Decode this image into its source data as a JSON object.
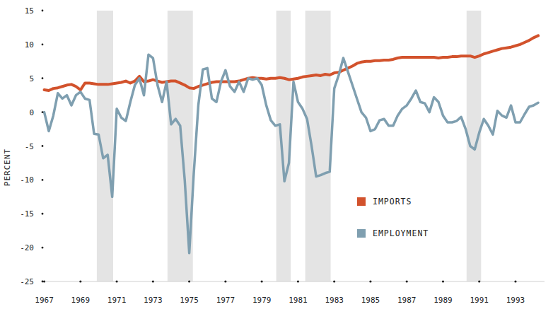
{
  "chart_data": {
    "type": "line",
    "y_label": "PERCENT",
    "x": [
      1967,
      1967.25,
      1967.5,
      1967.75,
      1968,
      1968.25,
      1968.5,
      1968.75,
      1969,
      1969.25,
      1969.5,
      1969.75,
      1970,
      1970.25,
      1970.5,
      1970.75,
      1971,
      1971.25,
      1971.5,
      1971.75,
      1972,
      1972.25,
      1972.5,
      1972.75,
      1973,
      1973.25,
      1973.5,
      1973.75,
      1974,
      1974.25,
      1974.5,
      1974.75,
      1975,
      1975.25,
      1975.5,
      1975.75,
      1976,
      1976.25,
      1976.5,
      1976.75,
      1977,
      1977.25,
      1977.5,
      1977.75,
      1978,
      1978.25,
      1978.5,
      1978.75,
      1979,
      1979.25,
      1979.5,
      1979.75,
      1980,
      1980.25,
      1980.5,
      1980.75,
      1981,
      1981.25,
      1981.5,
      1981.75,
      1982,
      1982.25,
      1982.5,
      1982.75,
      1983,
      1983.25,
      1983.5,
      1983.75,
      1984,
      1984.25,
      1984.5,
      1984.75,
      1985,
      1985.25,
      1985.5,
      1985.75,
      1986,
      1986.25,
      1986.5,
      1986.75,
      1987,
      1987.25,
      1987.5,
      1987.75,
      1988,
      1988.25,
      1988.5,
      1988.75,
      1989,
      1989.25,
      1989.5,
      1989.75,
      1990,
      1990.25,
      1990.5,
      1990.75,
      1991,
      1991.25,
      1991.5,
      1991.75,
      1992,
      1992.25,
      1992.5,
      1992.75,
      1993,
      1993.25,
      1993.5,
      1993.75,
      1994,
      1994.25
    ],
    "series": [
      {
        "name": "IMPORTS",
        "color": "#d2522c",
        "values": [
          3.3,
          3.2,
          3.5,
          3.6,
          3.8,
          4.0,
          4.1,
          3.8,
          3.3,
          4.3,
          4.3,
          4.2,
          4.1,
          4.1,
          4.1,
          4.2,
          4.3,
          4.4,
          4.6,
          4.3,
          4.6,
          5.3,
          4.5,
          4.6,
          4.8,
          4.6,
          4.4,
          4.5,
          4.6,
          4.6,
          4.3,
          4.0,
          3.6,
          3.5,
          3.8,
          4.0,
          4.2,
          4.4,
          4.5,
          4.5,
          4.5,
          4.5,
          4.5,
          4.6,
          4.8,
          5.0,
          5.1,
          5.0,
          5.0,
          4.9,
          5.0,
          5.0,
          5.1,
          5.0,
          4.8,
          4.9,
          5.0,
          5.2,
          5.3,
          5.4,
          5.5,
          5.4,
          5.6,
          5.5,
          5.8,
          5.9,
          6.2,
          6.5,
          6.8,
          7.2,
          7.4,
          7.5,
          7.5,
          7.6,
          7.6,
          7.7,
          7.7,
          7.8,
          8.0,
          8.1,
          8.1,
          8.1,
          8.1,
          8.1,
          8.1,
          8.1,
          8.1,
          8.0,
          8.1,
          8.1,
          8.2,
          8.2,
          8.3,
          8.3,
          8.3,
          8.1,
          8.3,
          8.6,
          8.8,
          9.0,
          9.2,
          9.4,
          9.5,
          9.6,
          9.8,
          10.0,
          10.3,
          10.6,
          11.0,
          11.3
        ]
      },
      {
        "name": "EMPLOYMENT",
        "color": "#7f9fb0",
        "values": [
          0,
          -2.8,
          -0.5,
          2.8,
          2,
          2.5,
          1,
          2.5,
          3,
          2,
          1.8,
          -3.2,
          -3.3,
          -6.8,
          -6.3,
          -12.5,
          0.5,
          -0.8,
          -1.3,
          1.5,
          4,
          5,
          2.5,
          8.5,
          8,
          4,
          1.5,
          4.5,
          -1.8,
          -1,
          -2,
          -10,
          -20.8,
          -9,
          1,
          6.3,
          6.5,
          2,
          1.5,
          4.5,
          6.2,
          3.8,
          3,
          4.5,
          3,
          5,
          4.8,
          5,
          4,
          1,
          -1.2,
          -2,
          -1.8,
          -10.2,
          -7.5,
          4.5,
          1.5,
          0.5,
          -1,
          -5,
          -9.5,
          -9.3,
          -9,
          -8.8,
          3.5,
          5.5,
          8,
          6,
          4,
          2,
          0,
          -0.8,
          -2.8,
          -2.5,
          -1.2,
          -1,
          -2,
          -2,
          -0.5,
          0.5,
          1,
          2,
          3.2,
          1.5,
          1.3,
          0,
          2.2,
          1.5,
          -0.5,
          -1.5,
          -1.5,
          -1.3,
          -0.7,
          -2.5,
          -5,
          -5.5,
          -3,
          -1,
          -2,
          -3.3,
          0.2,
          -0.5,
          -0.8,
          1,
          -1.5,
          -1.5,
          -0.3,
          0.8,
          1,
          1.4
        ]
      }
    ],
    "recessions": [
      [
        1969.9,
        1970.8
      ],
      [
        1973.8,
        1975.2
      ],
      [
        1979.8,
        1980.6
      ],
      [
        1981.4,
        1982.8
      ],
      [
        1990.3,
        1991.1
      ]
    ],
    "xlim": [
      1966.9,
      1994.6
    ],
    "xticks": [
      1967,
      1969,
      1971,
      1973,
      1975,
      1977,
      1979,
      1981,
      1983,
      1985,
      1987,
      1989,
      1991,
      1993
    ],
    "ylim": [
      -25,
      15
    ],
    "yticks": [
      -25,
      -20,
      -15,
      -10,
      -5,
      0,
      5,
      10,
      15
    ],
    "grid": false,
    "legend": "lower right"
  }
}
